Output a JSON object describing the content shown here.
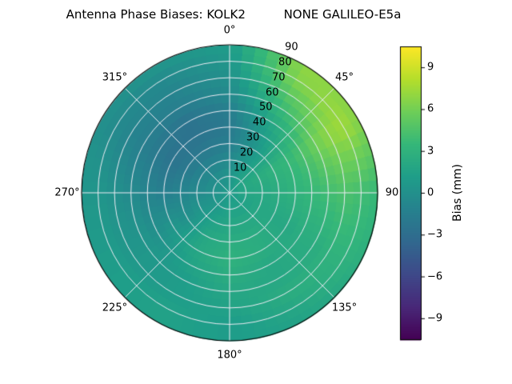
{
  "title": "Antenna Phase Biases: KOLK2          NONE GALILEO-E5a",
  "chart_data": {
    "type": "heatmap",
    "projection": "polar",
    "title": "Antenna Phase Biases: KOLK2          NONE GALILEO-E5a",
    "station": "KOLK2",
    "signal": "NONE GALILEO-E5a",
    "angular_tick_labels": [
      "0°",
      "45°",
      "90",
      "135°",
      "180°",
      "225°",
      "270°",
      "315°"
    ],
    "angular_tick_degrees": [
      0,
      45,
      90,
      135,
      180,
      225,
      270,
      315
    ],
    "radial_tick_labels": [
      "10",
      "20",
      "30",
      "40",
      "50",
      "60",
      "70",
      "80",
      "90"
    ],
    "radial_tick_values": [
      10,
      20,
      30,
      40,
      50,
      60,
      70,
      80,
      90
    ],
    "radial_label_angle_deg": 23,
    "zenith_max_deg": 90,
    "grid_on": true,
    "colorbar": {
      "label": "Bias (mm)",
      "tick_values": [
        -9,
        -6,
        -3,
        0,
        3,
        6,
        9
      ],
      "tick_labels": [
        "−9",
        "−6",
        "−3",
        "0",
        "3",
        "6",
        "9"
      ],
      "vmin": -10.5,
      "vmax": 10.5,
      "position": "right"
    },
    "colormap": {
      "name": "viridis",
      "stops": [
        "#440154",
        "#482878",
        "#3e4989",
        "#31688e",
        "#26828e",
        "#1f9e89",
        "#35b779",
        "#6ece58",
        "#b5de2b",
        "#fde725"
      ]
    },
    "grid_lines_color": "#ececf4",
    "grid": {
      "azimuth_deg": [
        0,
        30,
        60,
        90,
        120,
        150,
        180,
        210,
        240,
        270,
        300,
        330,
        360
      ],
      "zenith_deg": [
        0,
        10,
        20,
        30,
        40,
        50,
        60,
        70,
        80,
        90
      ],
      "bias_mm": [
        [
          1.0,
          1.0,
          1.0,
          1.0,
          1.0,
          1.0,
          1.0,
          1.0,
          1.0,
          1.0,
          1.0,
          1.0,
          1.0
        ],
        [
          0.5,
          1.5,
          2.0,
          2.0,
          1.5,
          1.5,
          1.5,
          1.0,
          0.5,
          0.0,
          0.0,
          0.0,
          0.5
        ],
        [
          -0.5,
          1.0,
          2.5,
          2.0,
          2.0,
          2.0,
          2.0,
          1.5,
          0.5,
          -0.5,
          -1.0,
          -1.0,
          -0.5
        ],
        [
          -1.5,
          0.5,
          3.0,
          2.5,
          2.0,
          2.5,
          2.5,
          2.0,
          0.0,
          -1.0,
          -2.0,
          -2.0,
          -1.5
        ],
        [
          -2.0,
          1.0,
          3.5,
          3.0,
          2.0,
          2.5,
          3.0,
          2.0,
          0.5,
          -1.5,
          -2.5,
          -2.5,
          -2.0
        ],
        [
          -1.5,
          2.0,
          4.5,
          3.5,
          2.5,
          2.0,
          2.5,
          1.5,
          0.0,
          -1.0,
          -2.0,
          -2.5,
          -1.5
        ],
        [
          -0.5,
          3.5,
          6.0,
          4.0,
          2.5,
          2.0,
          2.0,
          1.0,
          0.5,
          -0.5,
          -1.5,
          -1.5,
          -0.5
        ],
        [
          0.0,
          5.0,
          7.0,
          4.5,
          3.0,
          2.5,
          1.5,
          1.0,
          0.5,
          0.0,
          -1.0,
          -1.0,
          0.0
        ],
        [
          0.5,
          6.5,
          7.5,
          4.0,
          3.0,
          2.0,
          1.0,
          1.5,
          1.0,
          0.5,
          -0.5,
          -0.5,
          0.5
        ],
        [
          1.0,
          7.0,
          6.5,
          3.5,
          2.5,
          1.5,
          1.0,
          1.5,
          1.0,
          0.5,
          0.0,
          0.5,
          1.0
        ]
      ]
    }
  }
}
